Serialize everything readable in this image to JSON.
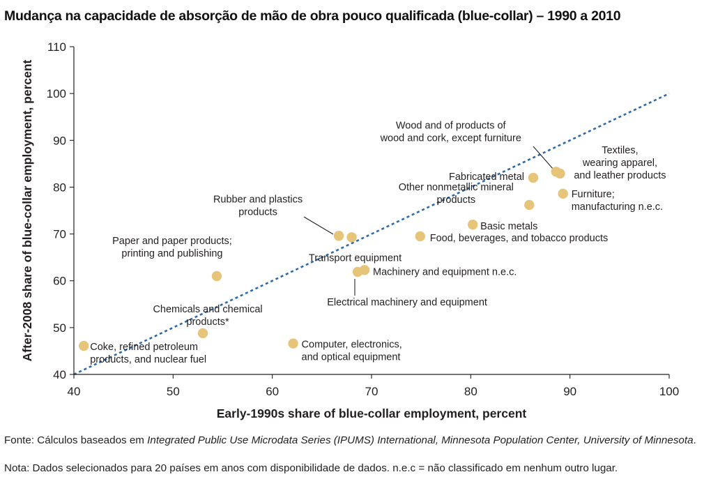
{
  "title": "Mudança na capacidade de absorção de mão de obra pouco qualificada (blue-collar) – 1990 a 2010",
  "source": {
    "prefix": "Fonte: Cálculos baseados em ",
    "italic": "Integrated Public Use Microdata Series (IPUMS) International, Minnesota Population Center, University of Minnesota",
    "suffix": "."
  },
  "note": "Nota: Dados selecionados para 20 países em anos com disponibilidade de dados. n.e.c = não classificado em nenhum outro lugar.",
  "colors": {
    "points": "#e6c479",
    "diagonal": "#2e6aa5",
    "axis": "#231f20",
    "text": "#231f20"
  },
  "chart_data": {
    "type": "scatter",
    "xlabel": "Early-1990s share of blue-collar employment, percent",
    "ylabel": "After-2008 share of blue-collar employment, percent",
    "xlim": [
      40,
      100
    ],
    "ylim": [
      40,
      110
    ],
    "xticks": [
      40,
      50,
      60,
      70,
      80,
      90,
      100
    ],
    "yticks": [
      40,
      50,
      60,
      70,
      80,
      90,
      100,
      110
    ],
    "grid": false,
    "reference_line": "y = x (dotted)",
    "points": [
      {
        "x": 41.0,
        "y": 46.1,
        "label": [
          "Coke, refined petroleum",
          "products, and nuclear fuel"
        ]
      },
      {
        "x": 53.0,
        "y": 48.8,
        "label": [
          "Chemicals and chemical",
          "products*"
        ]
      },
      {
        "x": 54.4,
        "y": 61.0,
        "label": [
          "Paper and paper products;",
          "printing and publishing"
        ]
      },
      {
        "x": 62.1,
        "y": 46.6,
        "label": [
          "Computer, electronics,",
          "and optical equipment"
        ]
      },
      {
        "x": 66.7,
        "y": 69.6,
        "label": [
          "Rubber and plastics",
          "products"
        ]
      },
      {
        "x": 68.0,
        "y": 69.3,
        "label": [
          "Transport equipment"
        ]
      },
      {
        "x": 68.6,
        "y": 61.9,
        "label": [
          "Electrical machinery and equipment"
        ]
      },
      {
        "x": 69.3,
        "y": 62.3,
        "label": [
          "Machinery and equipment n.e.c."
        ]
      },
      {
        "x": 74.9,
        "y": 69.5,
        "label": [
          "Food, beverages, and tobacco products"
        ]
      },
      {
        "x": 80.2,
        "y": 72.0,
        "label": [
          "Basic metals"
        ]
      },
      {
        "x": 85.9,
        "y": 76.2,
        "label": [
          "Other nonmetallic mineral",
          "products"
        ]
      },
      {
        "x": 86.3,
        "y": 82.0,
        "label": [
          "Fabricated metal"
        ]
      },
      {
        "x": 88.6,
        "y": 83.3,
        "label": [
          "Wood and of products of",
          "wood and cork, except furniture"
        ]
      },
      {
        "x": 89.0,
        "y": 82.9,
        "label": [
          "Textiles,",
          "wearing apparel,",
          "and leather products"
        ]
      },
      {
        "x": 89.3,
        "y": 78.6,
        "label": [
          "Furniture;",
          "manufacturing n.e.c."
        ]
      }
    ]
  }
}
